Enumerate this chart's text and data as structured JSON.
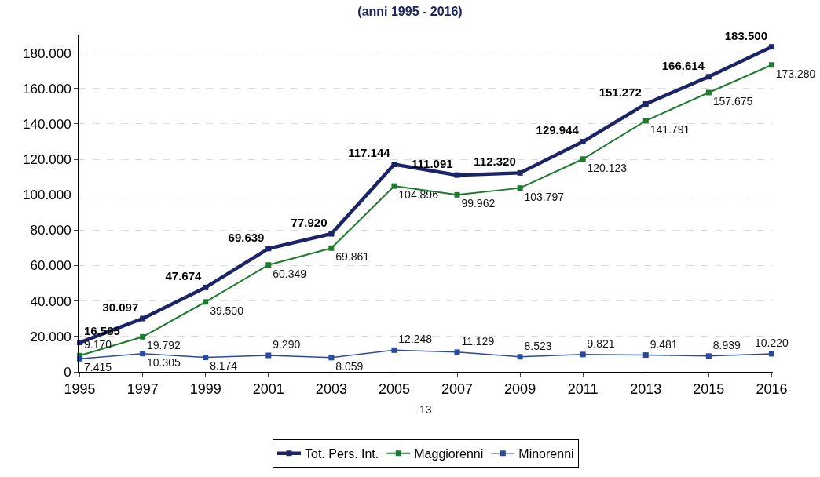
{
  "chart_data": {
    "type": "line",
    "title": "(anni 1995 - 2016)",
    "categories": [
      "1995",
      "1997",
      "1999",
      "2001",
      "2003",
      "2005",
      "2007",
      "2009",
      "2011",
      "2013",
      "2015",
      "2016"
    ],
    "series": [
      {
        "name": "Tot. Pers. Int.",
        "color": "#1b2466",
        "values": [
          16585,
          30097,
          47674,
          69639,
          77920,
          117144,
          111091,
          112320,
          129944,
          151272,
          166614,
          183500
        ],
        "value_labels": [
          "16.585",
          "30.097",
          "47.674",
          "69.639",
          "77.920",
          "117.144",
          "111.091",
          "112.320",
          "129.944",
          "151.272",
          "166.614",
          "183.500"
        ]
      },
      {
        "name": "Maggiorenni",
        "color": "#1f7a30",
        "values": [
          9170,
          19792,
          39500,
          60349,
          69861,
          104896,
          99962,
          103797,
          120123,
          141791,
          157675,
          173280
        ],
        "value_labels": [
          "9.170",
          "19.792",
          "39.500",
          "60.349",
          "69.861",
          "104.896",
          "99.962",
          "103.797",
          "120.123",
          "141.791",
          "157.675",
          "173.280"
        ]
      },
      {
        "name": "Minorenni",
        "color": "#2b4a9e",
        "values": [
          7415,
          10305,
          8174,
          9290,
          8059,
          12248,
          11129,
          8523,
          9821,
          9481,
          8939,
          10220
        ],
        "value_labels": [
          "7.415",
          "10.305",
          "8.174",
          "9.290",
          "8.059",
          "12.248",
          "11.129",
          "8.523",
          "9.821",
          "9.481",
          "8.939",
          "10.220"
        ]
      }
    ],
    "ylim": [
      0,
      190000
    ],
    "yticks": [
      {
        "value": 0,
        "label": "0"
      },
      {
        "value": 20000,
        "label": "20.000"
      },
      {
        "value": 40000,
        "label": "40.000"
      },
      {
        "value": 60000,
        "label": "60.000"
      },
      {
        "value": 80000,
        "label": "80.000"
      },
      {
        "value": 100000,
        "label": "100.000"
      },
      {
        "value": 120000,
        "label": "120.000"
      },
      {
        "value": 140000,
        "label": "140.000"
      },
      {
        "value": 160000,
        "label": "160.000"
      },
      {
        "value": 180000,
        "label": "180.000"
      }
    ],
    "grid": "y",
    "legend": "bottom",
    "marker": "square",
    "line_style": "solid",
    "annotations": [
      "13"
    ]
  }
}
